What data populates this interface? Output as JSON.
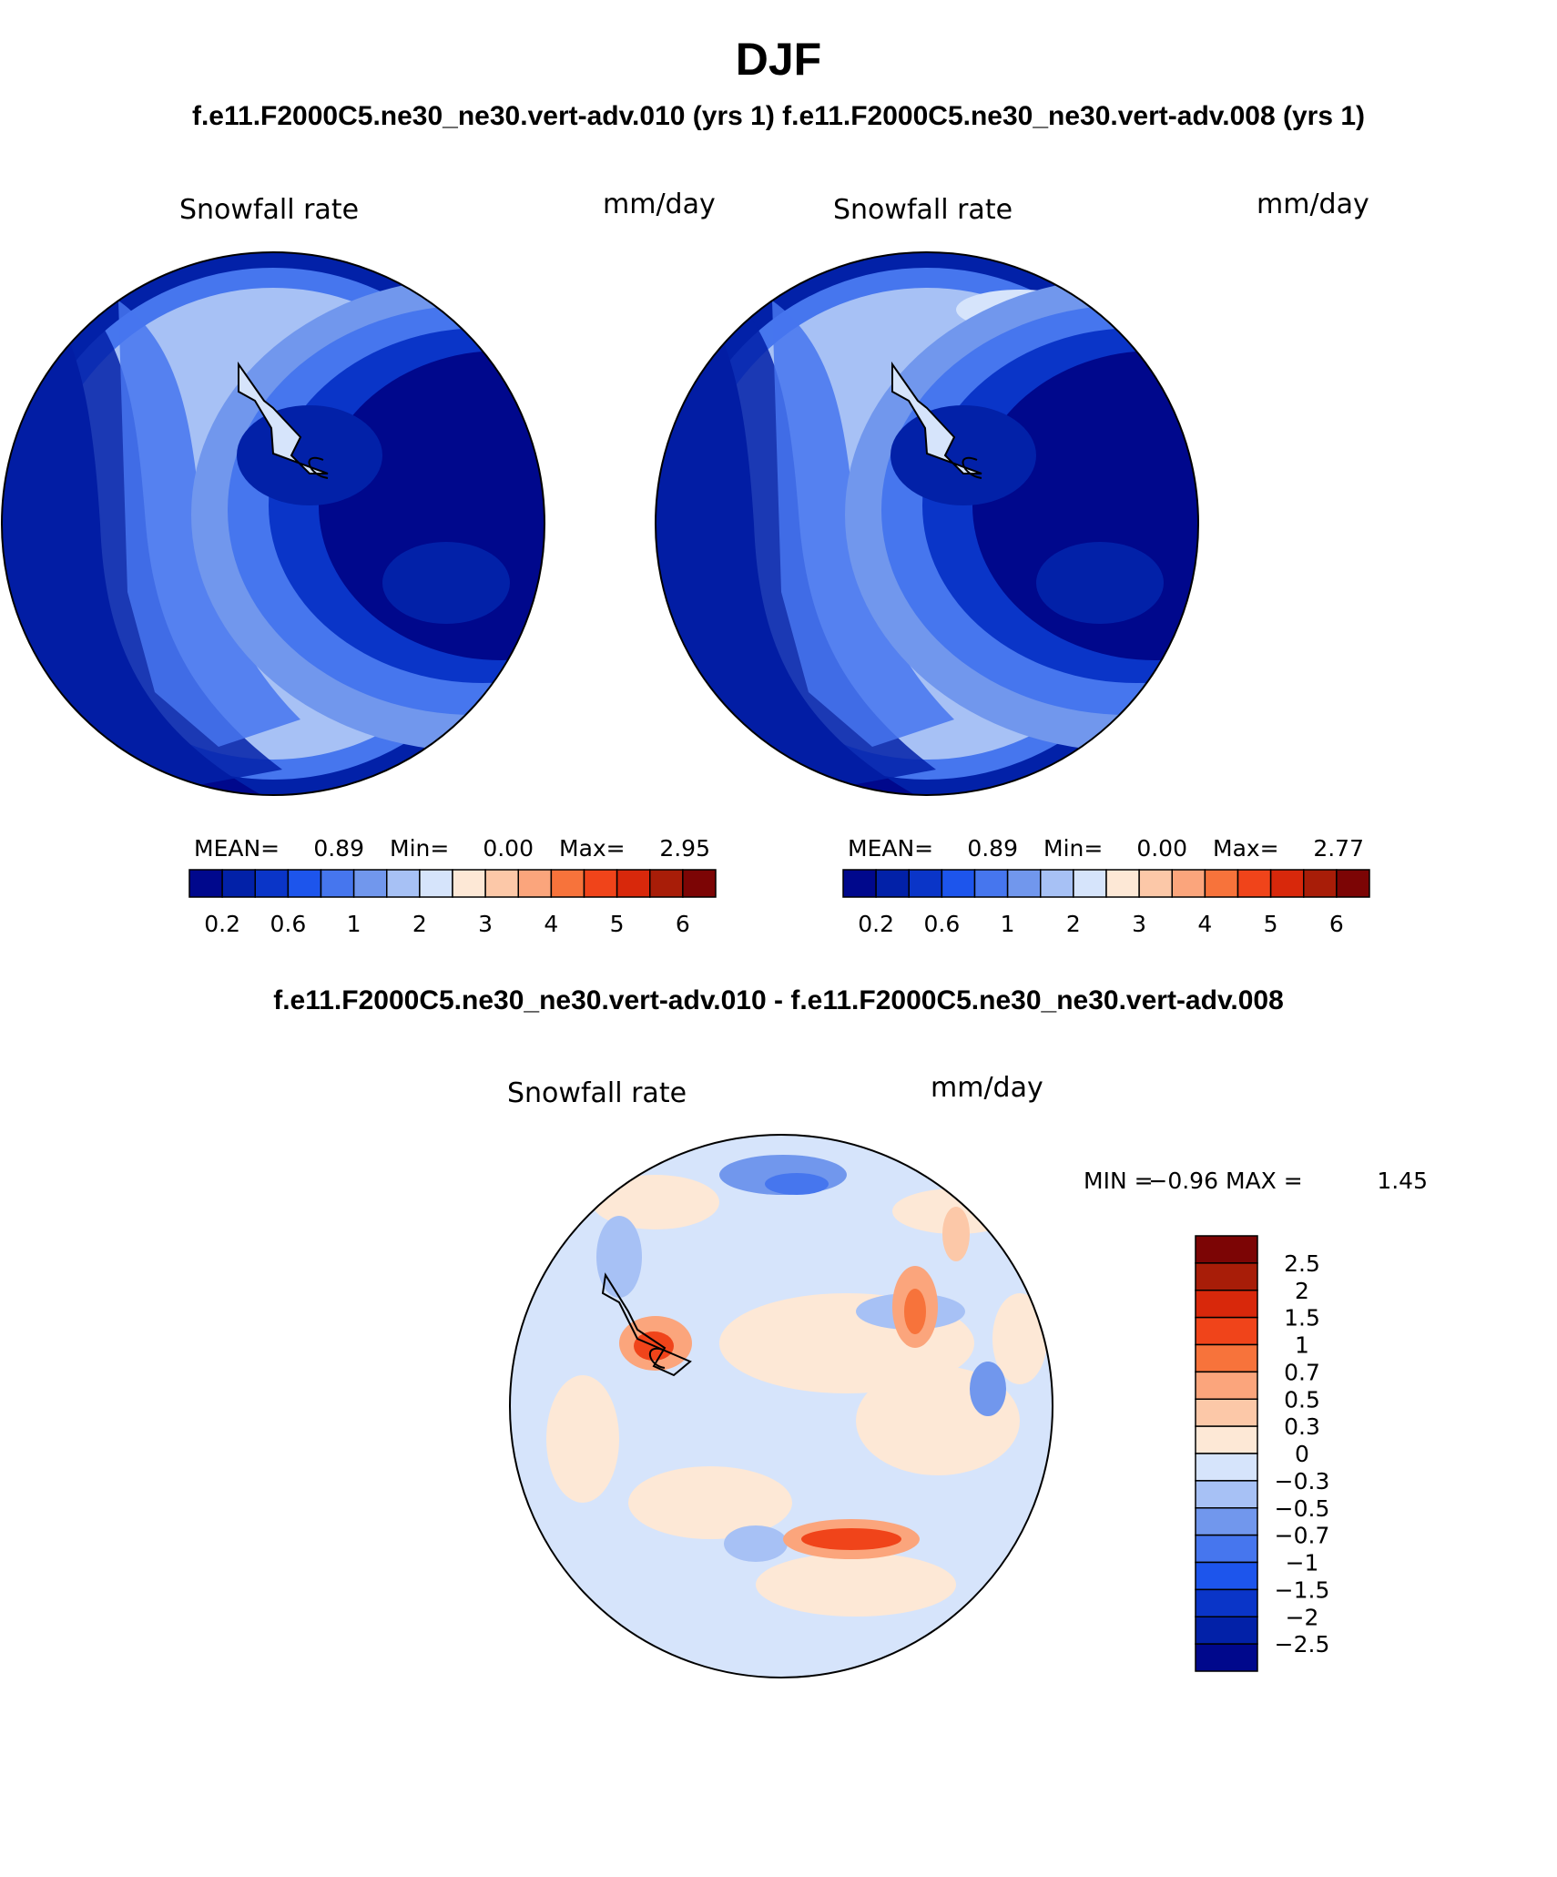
{
  "title": "DJF",
  "header": "f.e11.F2000C5.ne30_ne30.vert-adv.010 (yrs 1) f.e11.F2000C5.ne30_ne30.vert-adv.008 (yrs 1)",
  "diff_header": "f.e11.F2000C5.ne30_ne30.vert-adv.010 - f.e11.F2000C5.ne30_ne30.vert-adv.008",
  "colors": {
    "abs_scale": [
      "#00088c",
      "#0221a8",
      "#0a35c8",
      "#1d55ec",
      "#4676ee",
      "#7197ed",
      "#a7c1f5",
      "#d6e4fb",
      "#fde8d6",
      "#fcc8a8",
      "#fba57c",
      "#f7733b",
      "#f0441a",
      "#d8280b",
      "#a81d08",
      "#7c0505"
    ],
    "diff_scale": [
      "#00088c",
      "#0221a8",
      "#0a35c8",
      "#1d55ec",
      "#4676ee",
      "#7197ed",
      "#a7c1f5",
      "#d6e4fb",
      "#fde8d6",
      "#fcc8a8",
      "#fba57c",
      "#f7733b",
      "#f0441a",
      "#d8280b",
      "#a81d08",
      "#7c0505"
    ]
  },
  "panels": [
    {
      "id": "panel-010",
      "variable": "Snowfall rate",
      "units": "mm/day",
      "mean_label": "MEAN=",
      "mean_value": "0.89",
      "min_label": "Min=",
      "min_value": "0.00",
      "max_label": "Max=",
      "max_value": "2.95"
    },
    {
      "id": "panel-008",
      "variable": "Snowfall rate",
      "units": "mm/day",
      "mean_label": "MEAN=",
      "mean_value": "0.89",
      "min_label": "Min=",
      "min_value": "0.00",
      "max_label": "Max=",
      "max_value": "2.77"
    }
  ],
  "abs_ticks": [
    "0.2",
    "0.6",
    "1",
    "2",
    "3",
    "4",
    "5",
    "6"
  ],
  "diff_panel": {
    "variable": "Snowfall rate",
    "units": "mm/day",
    "min_label": "MIN =",
    "min_value": "−0.96",
    "max_label": "MAX =",
    "max_value": "1.45"
  },
  "diff_ticks": [
    "2.5",
    "2",
    "1.5",
    "1",
    "0.7",
    "0.5",
    "0.3",
    "0",
    "−0.3",
    "−0.5",
    "−0.7",
    "−1",
    "−1.5",
    "−2",
    "−2.5"
  ]
}
